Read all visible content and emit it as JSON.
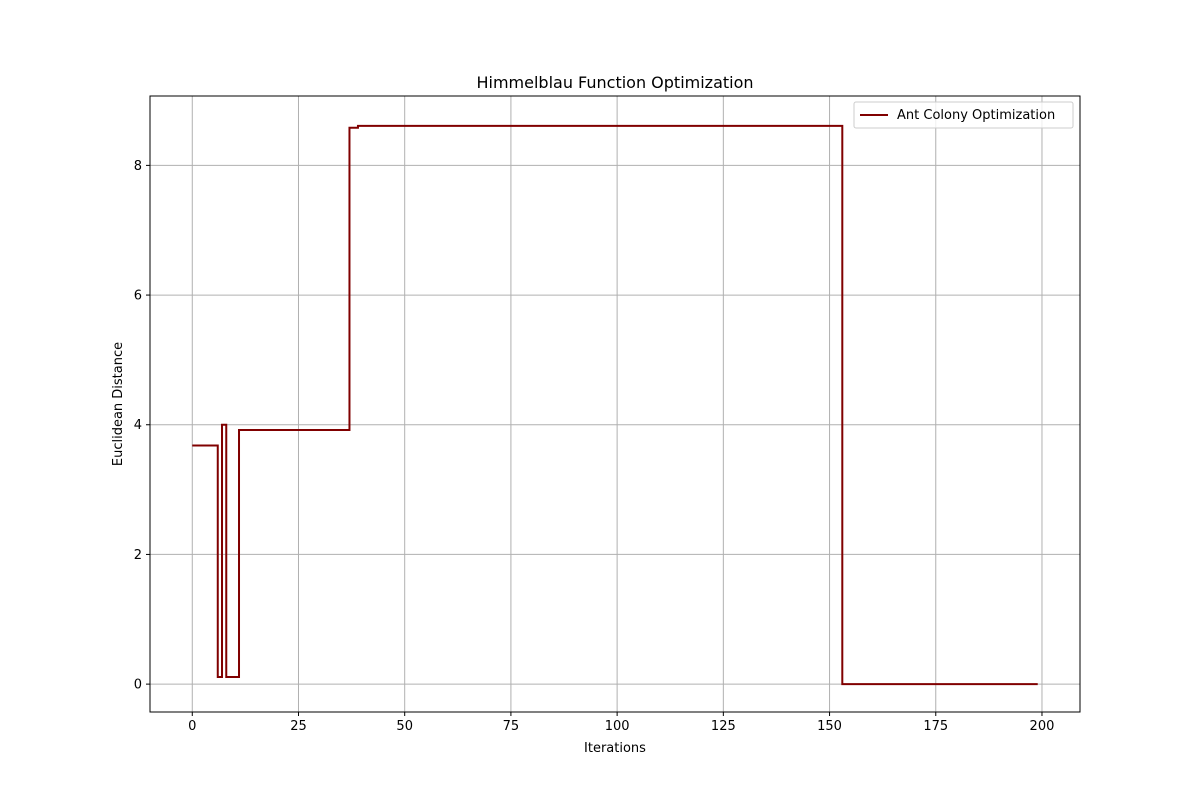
{
  "chart_data": {
    "type": "line",
    "title": "Himmelblau Function Optimization",
    "xlabel": "Iterations",
    "ylabel": "Euclidean Distance",
    "xlim": [
      -9.95,
      208.95
    ],
    "ylim": [
      -0.43,
      9.07
    ],
    "x_ticks": [
      0,
      25,
      50,
      75,
      100,
      125,
      150,
      175,
      200
    ],
    "y_ticks": [
      0,
      2,
      4,
      6,
      8
    ],
    "grid": true,
    "legend_position": "top-right",
    "colors": {
      "line": "#800000",
      "grid": "#b0b0b0",
      "axes": "#000000"
    },
    "series": [
      {
        "name": "Ant Colony Optimization",
        "step": "post",
        "x": [
          0,
          6,
          7,
          8,
          9,
          11,
          37,
          39,
          153,
          199
        ],
        "y": [
          3.68,
          0.11,
          4.0,
          0.11,
          0.11,
          3.92,
          8.58,
          8.61,
          0.0,
          0.0
        ]
      }
    ]
  }
}
